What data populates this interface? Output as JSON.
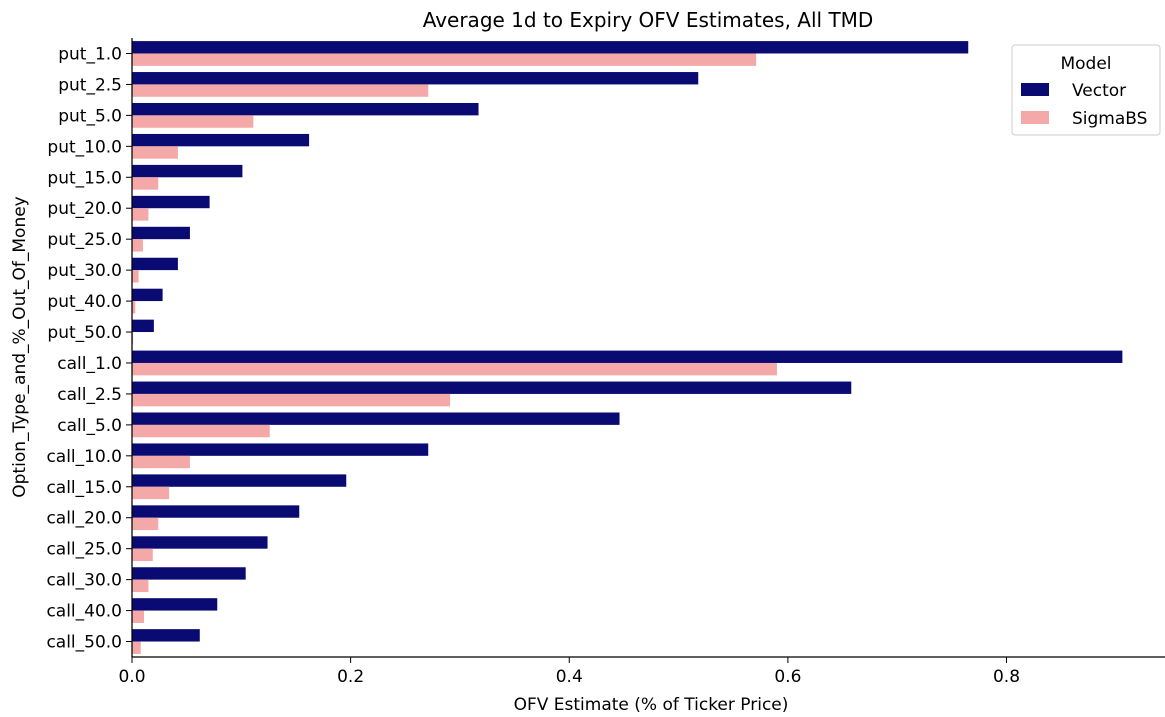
{
  "chart_data": {
    "type": "bar",
    "orientation": "horizontal",
    "title": "Average 1d to Expiry OFV Estimates, All TMD",
    "xlabel": "OFV Estimate (% of Ticker Price)",
    "ylabel": "Option_Type_and_%_Out_Of_Money",
    "xlim": [
      0.0,
      0.945
    ],
    "xticks": [
      "0.0",
      "0.2",
      "0.4",
      "0.6",
      "0.8"
    ],
    "grid": false,
    "legend": {
      "title": "Model",
      "placement": "top-right"
    },
    "categories": [
      "put_1.0",
      "put_2.5",
      "put_5.0",
      "put_10.0",
      "put_15.0",
      "put_20.0",
      "put_25.0",
      "put_30.0",
      "put_40.0",
      "put_50.0",
      "call_1.0",
      "call_2.5",
      "call_5.0",
      "call_10.0",
      "call_15.0",
      "call_20.0",
      "call_25.0",
      "call_30.0",
      "call_40.0",
      "call_50.0"
    ],
    "series": [
      {
        "name": "Vector",
        "color": "#0a0a73",
        "values": [
          0.765,
          0.518,
          0.317,
          0.162,
          0.101,
          0.071,
          0.053,
          0.042,
          0.028,
          0.02,
          0.906,
          0.658,
          0.446,
          0.271,
          0.196,
          0.153,
          0.124,
          0.104,
          0.078,
          0.062
        ]
      },
      {
        "name": "SigmaBS",
        "color": "#f4a9a8",
        "values": [
          0.571,
          0.271,
          0.111,
          0.042,
          0.024,
          0.015,
          0.01,
          0.006,
          0.003,
          0.001,
          0.59,
          0.291,
          0.126,
          0.053,
          0.034,
          0.024,
          0.019,
          0.015,
          0.011,
          0.008
        ]
      }
    ]
  }
}
